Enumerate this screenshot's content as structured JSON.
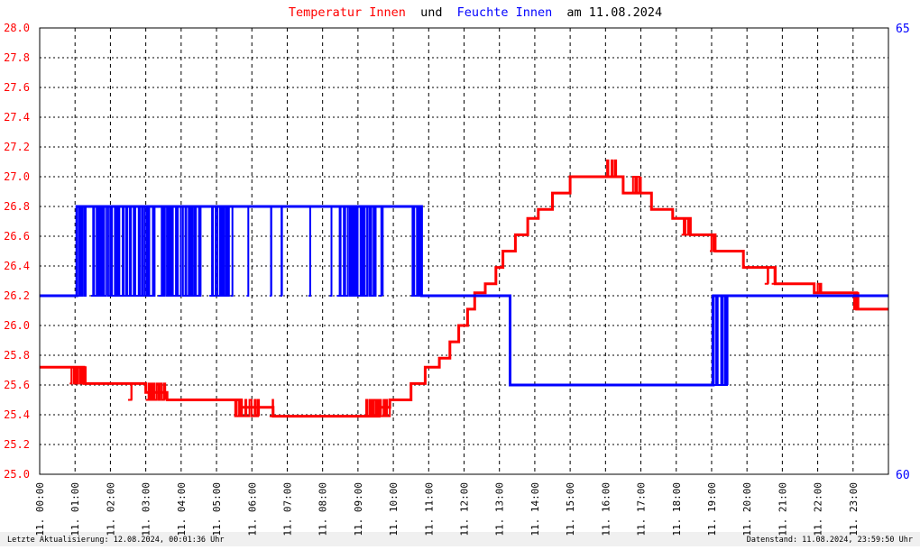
{
  "title_parts": {
    "temp_label": "Temperatur Innen",
    "connector": "und",
    "hum_label": "Feuchte Innen",
    "date_part": "am 11.08.2024"
  },
  "footer": {
    "left": "Letzte Aktualisierung: 12.08.2024, 00:01:36 Uhr",
    "right": "Datenstand: 11.08.2024, 23:59:50 Uhr"
  },
  "colors": {
    "temperature": "#ff0000",
    "humidity": "#0000ff",
    "grid": "#000000",
    "background": "#ffffff",
    "footer_band": "#f0f0f0"
  },
  "chart_data": {
    "type": "line",
    "grid": true,
    "x_axis": {
      "unit": "hour",
      "range": [
        0,
        24
      ],
      "tick_labels": [
        "11. 00:00",
        "11. 01:00",
        "11. 02:00",
        "11. 03:00",
        "11. 04:00",
        "11. 05:00",
        "11. 06:00",
        "11. 07:00",
        "11. 08:00",
        "11. 09:00",
        "11. 10:00",
        "11. 11:00",
        "11. 12:00",
        "11. 13:00",
        "11. 14:00",
        "11. 15:00",
        "11. 16:00",
        "11. 17:00",
        "11. 18:00",
        "11. 19:00",
        "11. 20:00",
        "11. 21:00",
        "11. 22:00",
        "11. 23:00"
      ]
    },
    "y_left": {
      "range": [
        25.0,
        28.0
      ],
      "tick_labels": [
        "25.0",
        "25.2",
        "25.4",
        "25.6",
        "25.8",
        "26.0",
        "26.2",
        "26.4",
        "26.6",
        "26.8",
        "27.0",
        "27.2",
        "27.4",
        "27.6",
        "27.8",
        "28.0"
      ]
    },
    "y_right": {
      "range": [
        60,
        65
      ],
      "tick_labels": [
        "60",
        "65"
      ]
    },
    "series": [
      {
        "name": "Temperatur Innen",
        "axis": "left",
        "step": true,
        "points": [
          [
            0.0,
            25.72
          ],
          [
            1.25,
            25.61
          ],
          [
            3.0,
            25.55
          ],
          [
            3.6,
            25.5
          ],
          [
            5.7,
            25.45
          ],
          [
            6.6,
            25.39
          ],
          [
            9.6,
            25.45
          ],
          [
            9.9,
            25.5
          ],
          [
            10.5,
            25.61
          ],
          [
            10.9,
            25.72
          ],
          [
            11.3,
            25.78
          ],
          [
            11.6,
            25.89
          ],
          [
            11.85,
            26.0
          ],
          [
            12.1,
            26.11
          ],
          [
            12.3,
            26.22
          ],
          [
            12.6,
            26.28
          ],
          [
            12.9,
            26.39
          ],
          [
            13.1,
            26.5
          ],
          [
            13.45,
            26.61
          ],
          [
            13.8,
            26.72
          ],
          [
            14.1,
            26.78
          ],
          [
            14.5,
            26.89
          ],
          [
            15.0,
            27.0
          ],
          [
            16.5,
            26.89
          ],
          [
            17.3,
            26.78
          ],
          [
            17.9,
            26.72
          ],
          [
            18.4,
            26.61
          ],
          [
            19.1,
            26.5
          ],
          [
            19.9,
            26.39
          ],
          [
            20.8,
            26.28
          ],
          [
            21.9,
            26.22
          ],
          [
            23.1,
            26.11
          ]
        ],
        "bursts": [
          [
            0.85,
            1.3,
            25.72,
            25.61
          ],
          [
            2.5,
            2.6,
            25.61,
            25.5
          ],
          [
            3.0,
            3.55,
            25.61,
            25.5
          ],
          [
            5.5,
            6.2,
            25.5,
            25.39
          ],
          [
            6.5,
            6.6,
            25.5,
            25.39
          ],
          [
            9.2,
            9.9,
            25.5,
            25.39
          ],
          [
            16.0,
            16.3,
            27.11,
            27.0
          ],
          [
            16.75,
            17.0,
            27.0,
            26.89
          ],
          [
            18.15,
            18.35,
            26.72,
            26.61
          ],
          [
            18.95,
            19.1,
            26.61,
            26.5
          ],
          [
            20.5,
            20.6,
            26.39,
            26.28
          ],
          [
            20.7,
            20.8,
            26.39,
            26.28
          ],
          [
            21.95,
            22.1,
            26.28,
            26.22
          ],
          [
            23.0,
            23.15,
            26.22,
            26.11
          ]
        ]
      },
      {
        "name": "Feuchte Innen",
        "axis": "right",
        "step": true,
        "points": [
          [
            0.0,
            62.0
          ],
          [
            1.05,
            63.0
          ],
          [
            10.8,
            62.0
          ],
          [
            13.3,
            61.0
          ],
          [
            19.05,
            62.0
          ],
          [
            24.0,
            62.0
          ]
        ],
        "bursts": [
          [
            1.05,
            1.3,
            63.0,
            62.0
          ],
          [
            1.45,
            3.25,
            63.0,
            62.0
          ],
          [
            3.35,
            4.55,
            63.0,
            62.0
          ],
          [
            4.8,
            5.35,
            63.0,
            62.0
          ],
          [
            5.4,
            5.45,
            63.0,
            62.0
          ],
          [
            5.85,
            5.9,
            63.0,
            62.0
          ],
          [
            6.5,
            6.55,
            63.0,
            62.0
          ],
          [
            6.8,
            6.85,
            63.0,
            62.0
          ],
          [
            7.6,
            7.65,
            63.0,
            62.0
          ],
          [
            8.2,
            8.25,
            63.0,
            62.0
          ],
          [
            8.4,
            9.5,
            63.0,
            62.0
          ],
          [
            9.6,
            9.7,
            63.0,
            62.0
          ],
          [
            10.5,
            10.8,
            63.0,
            62.0
          ],
          [
            18.95,
            19.45,
            62.0,
            61.0
          ]
        ]
      }
    ]
  }
}
